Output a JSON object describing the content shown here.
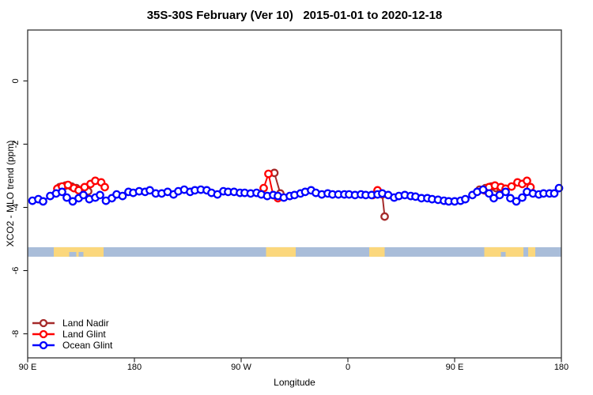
{
  "title": "35S-30S February (Ver 10)   2015-01-01 to 2020-12-18",
  "colors": {
    "background": "#FFFFFF",
    "axis_box": "#333333",
    "land_nadir": "#A52A2A",
    "land_glint": "#FF0000",
    "ocean_glint": "#0000FF",
    "map_ocean": "#A9BDD9",
    "map_land": "#FBD77C"
  },
  "chart_data": {
    "type": "line",
    "title": "35S-30S February (Ver 10)   2015-01-01 to 2020-12-18",
    "xlabel": "Longitude",
    "ylabel": "XCO2 - MLO trend (ppm)",
    "xlim": [
      90,
      540
    ],
    "ylim": [
      -8.76,
      1.61
    ],
    "grid": false,
    "x_ticks": {
      "values": [
        90,
        180,
        270,
        360,
        450,
        540
      ],
      "labels": [
        "90 E",
        "180",
        "90 W",
        "0",
        "90 E",
        "180"
      ]
    },
    "y_ticks": {
      "values": [
        0,
        -2,
        -4,
        -6,
        -8
      ],
      "labels": [
        "0",
        "-2",
        "-4",
        "-6",
        "-8"
      ]
    },
    "legend": {
      "position": "bottom-left",
      "items": [
        "Land Nadir",
        "Land Glint",
        "Ocean Glint"
      ]
    },
    "series": [
      {
        "name": "Land Nadir",
        "color": "#A52A2A",
        "segments": [
          [
            [
              117,
              -3.36
            ],
            [
              122,
              -3.31
            ],
            [
              127,
              -3.34
            ],
            [
              131,
              -3.39
            ],
            [
              136,
              -3.44
            ],
            [
              141,
              -3.49
            ]
          ],
          [
            [
              298,
              -2.91
            ],
            [
              303,
              -3.56
            ]
          ],
          [
            [
              389,
              -3.59
            ],
            [
              391,
              -4.29
            ]
          ],
          [
            [
              471,
              -3.44
            ],
            [
              476,
              -3.39
            ],
            [
              481,
              -3.34
            ],
            [
              485,
              -3.39
            ],
            [
              489,
              -3.46
            ]
          ]
        ]
      },
      {
        "name": "Land Glint",
        "color": "#FF0000",
        "segments": [
          [
            [
              115,
              -3.41
            ],
            [
              119,
              -3.34
            ],
            [
              124,
              -3.29
            ],
            [
              129,
              -3.39
            ],
            [
              133,
              -3.46
            ],
            [
              138,
              -3.36
            ],
            [
              143,
              -3.26
            ],
            [
              147,
              -3.16
            ],
            [
              152,
              -3.21
            ],
            [
              155,
              -3.36
            ]
          ],
          [
            [
              289,
              -3.39
            ],
            [
              293,
              -2.94
            ],
            [
              297,
              -3.61
            ],
            [
              301,
              -3.71
            ]
          ],
          [
            [
              381,
              -3.61
            ],
            [
              385,
              -3.46
            ]
          ],
          [
            [
              475,
              -3.46
            ],
            [
              479,
              -3.36
            ],
            [
              484,
              -3.31
            ],
            [
              489,
              -3.36
            ],
            [
              493,
              -3.41
            ],
            [
              498,
              -3.34
            ],
            [
              503,
              -3.21
            ],
            [
              507,
              -3.26
            ],
            [
              511,
              -3.16
            ],
            [
              514,
              -3.36
            ]
          ]
        ]
      },
      {
        "name": "Ocean Glint",
        "color": "#0000FF",
        "segments": [
          [
            [
              94,
              -3.79
            ],
            [
              99,
              -3.74
            ],
            [
              103,
              -3.81
            ],
            [
              109,
              -3.64
            ],
            [
              114,
              -3.56
            ],
            [
              119,
              -3.51
            ],
            [
              123,
              -3.69
            ],
            [
              128,
              -3.81
            ],
            [
              133,
              -3.71
            ],
            [
              137,
              -3.61
            ],
            [
              142,
              -3.74
            ],
            [
              147,
              -3.69
            ],
            [
              151,
              -3.61
            ],
            [
              156,
              -3.79
            ],
            [
              161,
              -3.71
            ],
            [
              165,
              -3.59
            ],
            [
              170,
              -3.64
            ],
            [
              175,
              -3.51
            ],
            [
              179,
              -3.54
            ],
            [
              184,
              -3.49
            ],
            [
              189,
              -3.51
            ],
            [
              193,
              -3.46
            ],
            [
              198,
              -3.56
            ],
            [
              203,
              -3.56
            ],
            [
              208,
              -3.51
            ],
            [
              213,
              -3.59
            ],
            [
              217,
              -3.49
            ],
            [
              222,
              -3.44
            ],
            [
              227,
              -3.51
            ],
            [
              231,
              -3.46
            ],
            [
              236,
              -3.44
            ],
            [
              241,
              -3.46
            ],
            [
              245,
              -3.54
            ],
            [
              250,
              -3.59
            ],
            [
              255,
              -3.49
            ],
            [
              259,
              -3.51
            ],
            [
              264,
              -3.51
            ],
            [
              269,
              -3.54
            ],
            [
              273,
              -3.54
            ],
            [
              278,
              -3.56
            ],
            [
              283,
              -3.54
            ],
            [
              287,
              -3.59
            ],
            [
              292,
              -3.64
            ],
            [
              297,
              -3.61
            ],
            [
              301,
              -3.64
            ],
            [
              306,
              -3.69
            ],
            [
              311,
              -3.64
            ],
            [
              315,
              -3.61
            ],
            [
              320,
              -3.56
            ],
            [
              324,
              -3.51
            ],
            [
              329,
              -3.46
            ],
            [
              333,
              -3.54
            ],
            [
              338,
              -3.59
            ],
            [
              343,
              -3.56
            ],
            [
              347,
              -3.59
            ],
            [
              352,
              -3.59
            ],
            [
              357,
              -3.59
            ],
            [
              361,
              -3.59
            ],
            [
              366,
              -3.61
            ],
            [
              371,
              -3.59
            ],
            [
              375,
              -3.61
            ],
            [
              380,
              -3.61
            ],
            [
              385,
              -3.59
            ],
            [
              389,
              -3.56
            ],
            [
              394,
              -3.61
            ],
            [
              399,
              -3.69
            ],
            [
              403,
              -3.64
            ],
            [
              408,
              -3.61
            ],
            [
              413,
              -3.64
            ],
            [
              417,
              -3.66
            ],
            [
              422,
              -3.71
            ],
            [
              427,
              -3.71
            ],
            [
              431,
              -3.74
            ],
            [
              436,
              -3.76
            ],
            [
              441,
              -3.79
            ],
            [
              445,
              -3.81
            ],
            [
              450,
              -3.81
            ],
            [
              455,
              -3.79
            ],
            [
              459,
              -3.74
            ],
            [
              465,
              -3.61
            ],
            [
              469,
              -3.51
            ],
            [
              474,
              -3.44
            ],
            [
              479,
              -3.56
            ],
            [
              483,
              -3.71
            ],
            [
              488,
              -3.61
            ],
            [
              493,
              -3.51
            ],
            [
              497,
              -3.71
            ],
            [
              502,
              -3.81
            ],
            [
              507,
              -3.69
            ],
            [
              511,
              -3.51
            ],
            [
              516,
              -3.56
            ],
            [
              521,
              -3.59
            ],
            [
              525,
              -3.56
            ],
            [
              530,
              -3.56
            ],
            [
              534,
              -3.56
            ],
            [
              538,
              -3.39
            ]
          ]
        ]
      }
    ],
    "map_strip": {
      "description": "latitude-band world map strip, ocean with land patches",
      "ocean_color": "#A9BDD9",
      "land_color": "#FBD77C",
      "y_range": [
        -5.56,
        -5.26
      ],
      "land_segments_lon": [
        [
          112,
          154
        ],
        [
          291,
          316
        ],
        [
          378,
          391
        ],
        [
          475,
          508
        ],
        [
          512,
          518
        ]
      ],
      "ocean_notches_lon": [
        [
          125,
          131
        ],
        [
          133,
          137
        ],
        [
          489,
          493
        ]
      ]
    }
  }
}
